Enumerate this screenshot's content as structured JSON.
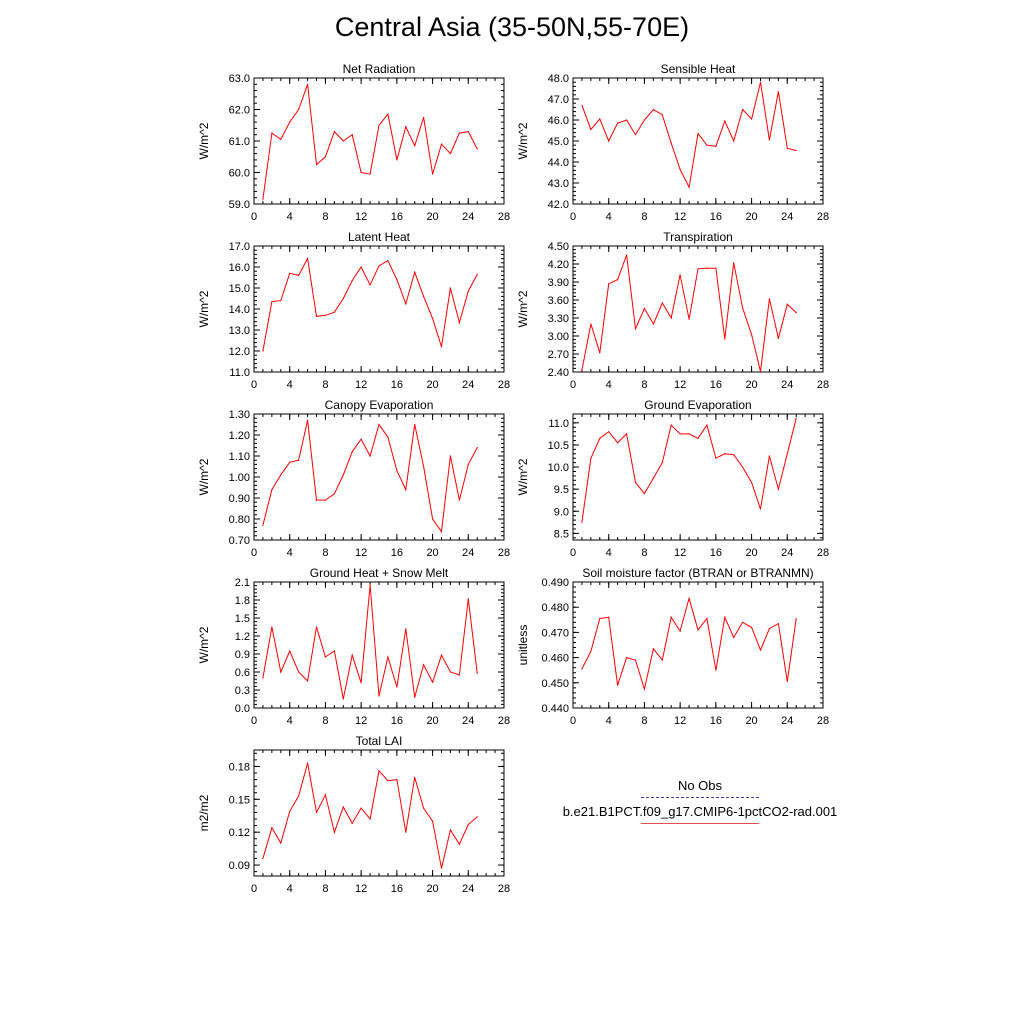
{
  "title": "Central Asia (35-50N,55-70E)",
  "legend": {
    "items": [
      {
        "label": "No Obs",
        "color": "#3a3aa8",
        "style": "dashed"
      },
      {
        "label": "b.e21.B1PCT.f09_g17.CMIP6-1pctCO2-rad.001",
        "color": "#e05050",
        "style": "solid"
      }
    ]
  },
  "colors": {
    "series": "#ff0000",
    "axis": "#000000"
  },
  "chart_data": [
    {
      "type": "line",
      "title": "Net Radiation",
      "ylabel": "W/m^2",
      "xlim": [
        0,
        28
      ],
      "ylim": [
        59,
        63
      ],
      "xticks": [
        "0",
        "4",
        "8",
        "12",
        "16",
        "20",
        "24",
        "28"
      ],
      "yticks": [
        "59.0",
        "60.0",
        "61.0",
        "62.0",
        "63.0"
      ],
      "x": [
        1,
        2,
        3,
        4,
        5,
        6,
        7,
        8,
        9,
        10,
        11,
        12,
        13,
        14,
        15,
        16,
        17,
        18,
        19,
        20,
        21,
        22,
        23,
        24,
        25
      ],
      "y": [
        59.15,
        61.25,
        61.05,
        61.6,
        62.0,
        62.8,
        60.25,
        60.5,
        61.3,
        61.0,
        61.2,
        60.0,
        59.95,
        61.5,
        61.85,
        60.4,
        61.45,
        60.85,
        61.75,
        59.95,
        60.9,
        60.6,
        61.25,
        61.3,
        60.75
      ]
    },
    {
      "type": "line",
      "title": "Sensible Heat",
      "ylabel": "W/m^2",
      "xlim": [
        0,
        28
      ],
      "ylim": [
        42,
        48
      ],
      "xticks": [
        "0",
        "4",
        "8",
        "12",
        "16",
        "20",
        "24",
        "28"
      ],
      "yticks": [
        "42.0",
        "43.0",
        "44.0",
        "45.0",
        "46.0",
        "47.0",
        "48.0"
      ],
      "x": [
        1,
        2,
        3,
        4,
        5,
        6,
        7,
        8,
        9,
        10,
        11,
        12,
        13,
        14,
        15,
        16,
        17,
        18,
        19,
        20,
        21,
        22,
        23,
        24,
        25
      ],
      "y": [
        46.7,
        45.55,
        46.05,
        45.0,
        45.85,
        46.0,
        45.3,
        46.0,
        46.5,
        46.25,
        44.9,
        43.65,
        42.8,
        45.35,
        44.8,
        44.75,
        45.95,
        45.0,
        46.5,
        46.05,
        47.8,
        45.05,
        47.35,
        44.65,
        44.55
      ]
    },
    {
      "type": "line",
      "title": "Latent Heat",
      "ylabel": "W/m^2",
      "xlim": [
        0,
        28
      ],
      "ylim": [
        11,
        17
      ],
      "xticks": [
        "0",
        "4",
        "8",
        "12",
        "16",
        "20",
        "24",
        "28"
      ],
      "yticks": [
        "11.0",
        "12.0",
        "13.0",
        "14.0",
        "15.0",
        "16.0",
        "17.0"
      ],
      "x": [
        1,
        2,
        3,
        4,
        5,
        6,
        7,
        8,
        9,
        10,
        11,
        12,
        13,
        14,
        15,
        16,
        17,
        18,
        19,
        20,
        21,
        22,
        23,
        24,
        25
      ],
      "y": [
        12.0,
        14.35,
        14.4,
        15.7,
        15.6,
        16.4,
        13.65,
        13.7,
        13.85,
        14.5,
        15.35,
        16.0,
        15.15,
        16.05,
        16.3,
        15.4,
        14.25,
        15.75,
        14.6,
        13.55,
        12.2,
        15.0,
        13.35,
        14.85,
        15.65
      ]
    },
    {
      "type": "line",
      "title": "Transpiration",
      "ylabel": "W/m^2",
      "xlim": [
        0,
        28
      ],
      "ylim": [
        2.4,
        4.5
      ],
      "xticks": [
        "0",
        "4",
        "8",
        "12",
        "16",
        "20",
        "24",
        "28"
      ],
      "yticks": [
        "2.40",
        "2.70",
        "3.00",
        "3.30",
        "3.60",
        "3.90",
        "4.20",
        "4.50"
      ],
      "x": [
        1,
        2,
        3,
        4,
        5,
        6,
        7,
        8,
        9,
        10,
        11,
        12,
        13,
        14,
        15,
        16,
        17,
        18,
        19,
        20,
        21,
        22,
        23,
        24,
        25
      ],
      "y": [
        2.43,
        3.2,
        2.72,
        3.87,
        3.94,
        4.35,
        3.12,
        3.46,
        3.2,
        3.55,
        3.3,
        4.02,
        3.28,
        4.12,
        4.13,
        4.13,
        2.95,
        4.22,
        3.47,
        3.02,
        2.41,
        3.62,
        2.96,
        3.53,
        3.39
      ]
    },
    {
      "type": "line",
      "title": "Canopy Evaporation",
      "ylabel": "W/m^2",
      "xlim": [
        0,
        28
      ],
      "ylim": [
        0.7,
        1.3
      ],
      "xticks": [
        "0",
        "4",
        "8",
        "12",
        "16",
        "20",
        "24",
        "28"
      ],
      "yticks": [
        "0.70",
        "0.80",
        "0.90",
        "1.00",
        "1.10",
        "1.20",
        "1.30"
      ],
      "x": [
        1,
        2,
        3,
        4,
        5,
        6,
        7,
        8,
        9,
        10,
        11,
        12,
        13,
        14,
        15,
        16,
        17,
        18,
        19,
        20,
        21,
        22,
        23,
        24,
        25
      ],
      "y": [
        0.77,
        0.94,
        1.01,
        1.07,
        1.08,
        1.27,
        0.89,
        0.89,
        0.92,
        1.01,
        1.12,
        1.18,
        1.1,
        1.25,
        1.19,
        1.03,
        0.94,
        1.25,
        1.05,
        0.8,
        0.74,
        1.1,
        0.89,
        1.06,
        1.14
      ]
    },
    {
      "type": "line",
      "title": "Ground Evaporation",
      "ylabel": "W/m^2",
      "xlim": [
        0,
        28
      ],
      "ylim": [
        8.35,
        11.2
      ],
      "xticks": [
        "0",
        "4",
        "8",
        "12",
        "16",
        "20",
        "24",
        "28"
      ],
      "yticks": [
        "8.5",
        "9.0",
        "9.5",
        "10.0",
        "10.5",
        "11.0"
      ],
      "x": [
        1,
        2,
        3,
        4,
        5,
        6,
        7,
        8,
        9,
        10,
        11,
        12,
        13,
        14,
        15,
        16,
        17,
        18,
        19,
        20,
        21,
        22,
        23,
        24,
        25
      ],
      "y": [
        8.75,
        10.2,
        10.65,
        10.8,
        10.55,
        10.75,
        9.65,
        9.4,
        9.75,
        10.1,
        10.95,
        10.75,
        10.75,
        10.65,
        10.95,
        10.2,
        10.3,
        10.28,
        10.0,
        9.65,
        9.05,
        10.25,
        9.5,
        10.3,
        11.1
      ]
    },
    {
      "type": "line",
      "title": "Ground Heat + Snow Melt",
      "ylabel": "W/m^2",
      "xlim": [
        0,
        28
      ],
      "ylim": [
        0,
        2.1
      ],
      "xticks": [
        "0",
        "4",
        "8",
        "12",
        "16",
        "20",
        "24",
        "28"
      ],
      "yticks": [
        "0.0",
        "0.3",
        "0.6",
        "0.9",
        "1.2",
        "1.5",
        "1.8",
        "2.1"
      ],
      "x": [
        1,
        2,
        3,
        4,
        5,
        6,
        7,
        8,
        9,
        10,
        11,
        12,
        13,
        14,
        15,
        16,
        17,
        18,
        19,
        20,
        21,
        22,
        23,
        24,
        25
      ],
      "y": [
        0.5,
        1.35,
        0.6,
        0.95,
        0.6,
        0.45,
        1.35,
        0.85,
        0.95,
        0.15,
        0.88,
        0.42,
        2.05,
        0.2,
        0.85,
        0.35,
        1.32,
        0.18,
        0.72,
        0.43,
        0.88,
        0.6,
        0.55,
        1.82,
        0.58
      ]
    },
    {
      "type": "line",
      "title": "Soil moisture factor (BTRAN or BTRANMN)",
      "ylabel": "unitless",
      "xlim": [
        0,
        28
      ],
      "ylim": [
        0.44,
        0.49
      ],
      "xticks": [
        "0",
        "4",
        "8",
        "12",
        "16",
        "20",
        "24",
        "28"
      ],
      "yticks": [
        "0.440",
        "0.450",
        "0.460",
        "0.470",
        "0.480",
        "0.490"
      ],
      "x": [
        1,
        2,
        3,
        4,
        5,
        6,
        7,
        8,
        9,
        10,
        11,
        12,
        13,
        14,
        15,
        16,
        17,
        18,
        19,
        20,
        21,
        22,
        23,
        24,
        25
      ],
      "y": [
        0.4555,
        0.4625,
        0.4755,
        0.476,
        0.449,
        0.46,
        0.459,
        0.4475,
        0.4635,
        0.459,
        0.476,
        0.4705,
        0.4835,
        0.471,
        0.4755,
        0.455,
        0.476,
        0.468,
        0.474,
        0.472,
        0.463,
        0.4715,
        0.4735,
        0.4505,
        0.4755
      ]
    },
    {
      "type": "line",
      "title": "Total LAI",
      "ylabel": "m2/m2",
      "xlim": [
        0,
        28
      ],
      "ylim": [
        0.08,
        0.195
      ],
      "xticks": [
        "0",
        "4",
        "8",
        "12",
        "16",
        "20",
        "24",
        "28"
      ],
      "yticks": [
        "0.09",
        "0.12",
        "0.15",
        "0.18"
      ],
      "x": [
        1,
        2,
        3,
        4,
        5,
        6,
        7,
        8,
        9,
        10,
        11,
        12,
        13,
        14,
        15,
        16,
        17,
        18,
        19,
        20,
        21,
        22,
        23,
        24,
        25
      ],
      "y": [
        0.096,
        0.124,
        0.11,
        0.139,
        0.153,
        0.183,
        0.138,
        0.154,
        0.12,
        0.143,
        0.128,
        0.142,
        0.132,
        0.176,
        0.167,
        0.168,
        0.12,
        0.17,
        0.142,
        0.13,
        0.087,
        0.122,
        0.109,
        0.127,
        0.134
      ]
    }
  ]
}
